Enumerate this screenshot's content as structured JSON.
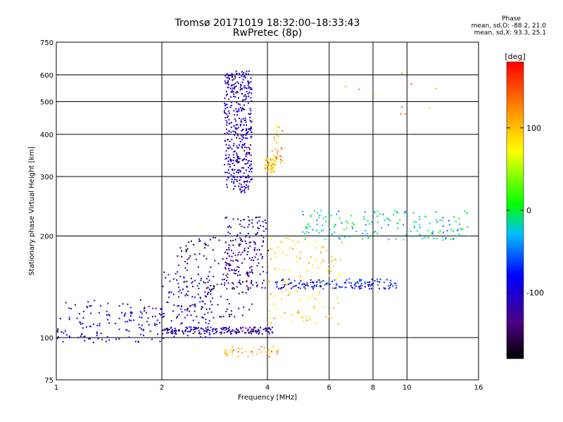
{
  "header": {
    "title": "Tromsø 20171019 18:32:00–18:33:43",
    "subtitle": "RwPretec (8p)"
  },
  "phase_stats": {
    "heading": "Phase",
    "line_o": "mean, sd,O: -88.2, 21.0",
    "line_x": "mean, sd,X:  93.3, 25.1"
  },
  "colorbar": {
    "unit_label": "[deg]",
    "ticks": [
      {
        "value": 100,
        "label": "100"
      },
      {
        "value": 0,
        "label": "0"
      },
      {
        "value": -100,
        "label": "-100"
      }
    ],
    "range": [
      -180,
      180
    ]
  },
  "chart_data": {
    "type": "scatter",
    "xlabel": "Frequency [MHz]",
    "ylabel": "Stationary phase Virtual Height [km]",
    "x_scale": "log",
    "y_scale": "log",
    "xlim": [
      1,
      16
    ],
    "ylim": [
      75,
      750
    ],
    "x_ticks": [
      {
        "value": 1,
        "label": "1"
      },
      {
        "value": 2,
        "label": "2"
      },
      {
        "value": 4,
        "label": "4"
      },
      {
        "value": 6,
        "label": "6"
      },
      {
        "value": 8,
        "label": "8"
      },
      {
        "value": 10,
        "label": "10"
      },
      {
        "value": 16,
        "label": "16"
      }
    ],
    "y_ticks": [
      {
        "value": 75,
        "label": "75"
      },
      {
        "value": 100,
        "label": "100"
      },
      {
        "value": 200,
        "label": "200"
      },
      {
        "value": 300,
        "label": "300"
      },
      {
        "value": 400,
        "label": "400"
      },
      {
        "value": 500,
        "label": "500"
      },
      {
        "value": 600,
        "label": "600"
      },
      {
        "value": 750,
        "label": "750"
      }
    ],
    "grid_x": [
      2,
      4,
      6,
      8,
      10
    ],
    "grid_y": [
      100,
      200,
      300,
      400,
      500,
      600
    ],
    "color_encodes": "phase [deg]",
    "clusters": [
      {
        "desc": "low E-layer trace (O-mode)",
        "f": [
          1.0,
          2.0
        ],
        "h": [
          97,
          130
        ],
        "phase": -110,
        "n": 140
      },
      {
        "desc": "E trace extension",
        "f": [
          2.0,
          2.8
        ],
        "h": [
          100,
          160
        ],
        "phase": -95,
        "n": 110
      },
      {
        "desc": "flat E/Es trace",
        "f": [
          2.0,
          4.2
        ],
        "h": [
          103,
          108
        ],
        "phase": -120,
        "n": 170
      },
      {
        "desc": "F1 rising trace O",
        "f": [
          2.2,
          3.6
        ],
        "h": [
          115,
          200
        ],
        "phase": -140,
        "n": 160
      },
      {
        "desc": "F1 cusp O",
        "f": [
          3.0,
          4.0
        ],
        "h": [
          140,
          230
        ],
        "phase": -120,
        "n": 160
      },
      {
        "desc": "F2 spread O",
        "f": [
          3.0,
          3.6
        ],
        "h": [
          270,
          620
        ],
        "phase": -110,
        "n": 420
      },
      {
        "desc": "F2 trace near 4 MHz",
        "f": [
          3.9,
          4.2
        ],
        "h": [
          310,
          340
        ],
        "phase": 95,
        "n": 50
      },
      {
        "desc": "F2 X trace column",
        "f": [
          4.1,
          4.4
        ],
        "h": [
          330,
          430
        ],
        "phase": 110,
        "n": 30
      },
      {
        "desc": "mid trace 4-9 MHz",
        "f": [
          4.2,
          9.3
        ],
        "h": [
          140,
          150
        ],
        "phase": -80,
        "n": 150
      },
      {
        "desc": "X-mode mid traces",
        "f": [
          4.0,
          6.5
        ],
        "h": [
          110,
          200
        ],
        "phase": 90,
        "n": 130
      },
      {
        "desc": "high trace 5-15 MHz",
        "f": [
          5.0,
          15.0
        ],
        "h": [
          195,
          240
        ],
        "phase": -20,
        "n": 170
      },
      {
        "desc": "lower Es 3-4.3 MHz",
        "f": [
          3.0,
          4.3
        ],
        "h": [
          88,
          95
        ],
        "phase": 110,
        "n": 40
      },
      {
        "desc": "scattered high echoes",
        "f": [
          6.0,
          13.0
        ],
        "h": [
          450,
          630
        ],
        "phase": 120,
        "n": 10
      }
    ]
  }
}
